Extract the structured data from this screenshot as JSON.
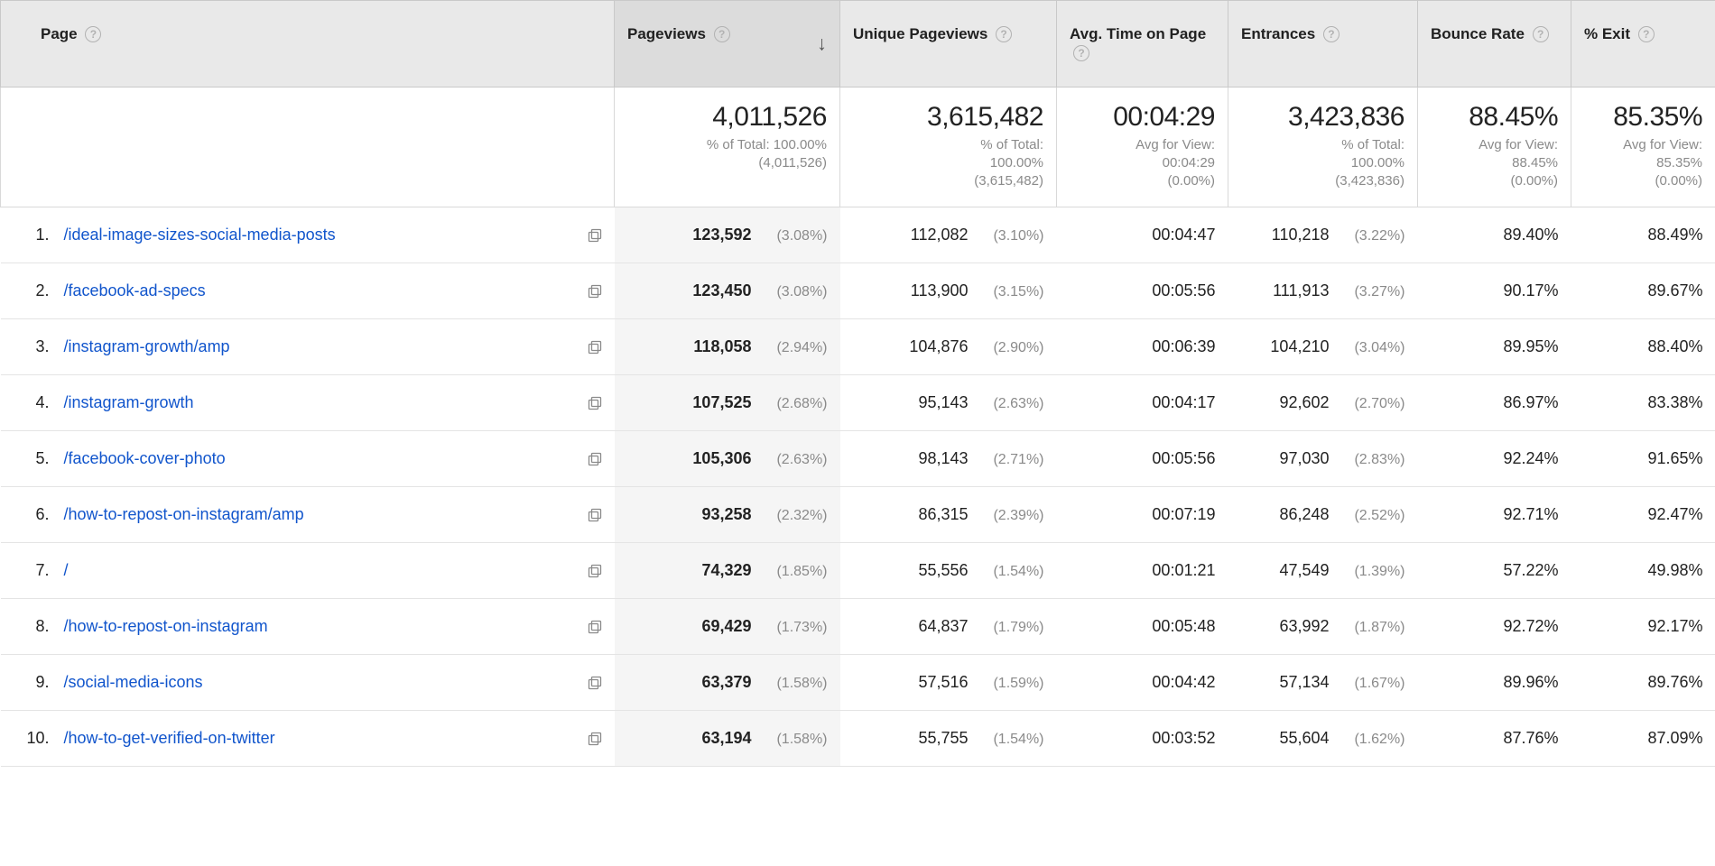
{
  "columns": {
    "page": "Page",
    "pageviews": "Pageviews",
    "unique_pageviews": "Unique Pageviews",
    "avg_time_on_page": "Avg. Time on Page",
    "entrances": "Entrances",
    "bounce_rate": "Bounce Rate",
    "pct_exit": "% Exit"
  },
  "sort": {
    "column": "pageviews",
    "direction": "desc"
  },
  "totals": {
    "pageviews": {
      "value": "4,011,526",
      "sub1": "% of Total: 100.00%",
      "sub2": "(4,011,526)"
    },
    "unique_pageviews": {
      "value": "3,615,482",
      "sub1": "% of Total:",
      "sub2": "100.00%",
      "sub3": "(3,615,482)"
    },
    "avg_time_on_page": {
      "value": "00:04:29",
      "sub1": "Avg for View:",
      "sub2": "00:04:29",
      "sub3": "(0.00%)"
    },
    "entrances": {
      "value": "3,423,836",
      "sub1": "% of Total:",
      "sub2": "100.00%",
      "sub3": "(3,423,836)"
    },
    "bounce_rate": {
      "value": "88.45%",
      "sub1": "Avg for View:",
      "sub2": "88.45%",
      "sub3": "(0.00%)"
    },
    "pct_exit": {
      "value": "85.35%",
      "sub1": "Avg for View:",
      "sub2": "85.35%",
      "sub3": "(0.00%)"
    }
  },
  "rows": [
    {
      "idx": "1.",
      "page": "/ideal-image-sizes-social-media-posts",
      "pv": "123,592",
      "pv_pct": "(3.08%)",
      "upv": "112,082",
      "upv_pct": "(3.10%)",
      "time": "00:04:47",
      "entr": "110,218",
      "entr_pct": "(3.22%)",
      "br": "89.40%",
      "exit": "88.49%"
    },
    {
      "idx": "2.",
      "page": "/facebook-ad-specs",
      "pv": "123,450",
      "pv_pct": "(3.08%)",
      "upv": "113,900",
      "upv_pct": "(3.15%)",
      "time": "00:05:56",
      "entr": "111,913",
      "entr_pct": "(3.27%)",
      "br": "90.17%",
      "exit": "89.67%"
    },
    {
      "idx": "3.",
      "page": "/instagram-growth/amp",
      "pv": "118,058",
      "pv_pct": "(2.94%)",
      "upv": "104,876",
      "upv_pct": "(2.90%)",
      "time": "00:06:39",
      "entr": "104,210",
      "entr_pct": "(3.04%)",
      "br": "89.95%",
      "exit": "88.40%"
    },
    {
      "idx": "4.",
      "page": "/instagram-growth",
      "pv": "107,525",
      "pv_pct": "(2.68%)",
      "upv": "95,143",
      "upv_pct": "(2.63%)",
      "time": "00:04:17",
      "entr": "92,602",
      "entr_pct": "(2.70%)",
      "br": "86.97%",
      "exit": "83.38%"
    },
    {
      "idx": "5.",
      "page": "/facebook-cover-photo",
      "pv": "105,306",
      "pv_pct": "(2.63%)",
      "upv": "98,143",
      "upv_pct": "(2.71%)",
      "time": "00:05:56",
      "entr": "97,030",
      "entr_pct": "(2.83%)",
      "br": "92.24%",
      "exit": "91.65%"
    },
    {
      "idx": "6.",
      "page": "/how-to-repost-on-instagram/amp",
      "pv": "93,258",
      "pv_pct": "(2.32%)",
      "upv": "86,315",
      "upv_pct": "(2.39%)",
      "time": "00:07:19",
      "entr": "86,248",
      "entr_pct": "(2.52%)",
      "br": "92.71%",
      "exit": "92.47%"
    },
    {
      "idx": "7.",
      "page": "/",
      "pv": "74,329",
      "pv_pct": "(1.85%)",
      "upv": "55,556",
      "upv_pct": "(1.54%)",
      "time": "00:01:21",
      "entr": "47,549",
      "entr_pct": "(1.39%)",
      "br": "57.22%",
      "exit": "49.98%"
    },
    {
      "idx": "8.",
      "page": "/how-to-repost-on-instagram",
      "pv": "69,429",
      "pv_pct": "(1.73%)",
      "upv": "64,837",
      "upv_pct": "(1.79%)",
      "time": "00:05:48",
      "entr": "63,992",
      "entr_pct": "(1.87%)",
      "br": "92.72%",
      "exit": "92.17%"
    },
    {
      "idx": "9.",
      "page": "/social-media-icons",
      "pv": "63,379",
      "pv_pct": "(1.58%)",
      "upv": "57,516",
      "upv_pct": "(1.59%)",
      "time": "00:04:42",
      "entr": "57,134",
      "entr_pct": "(1.67%)",
      "br": "89.96%",
      "exit": "89.76%"
    },
    {
      "idx": "10.",
      "page": "/how-to-get-verified-on-twitter",
      "pv": "63,194",
      "pv_pct": "(1.58%)",
      "upv": "55,755",
      "upv_pct": "(1.54%)",
      "time": "00:03:52",
      "entr": "55,604",
      "entr_pct": "(1.62%)",
      "br": "87.76%",
      "exit": "87.09%"
    }
  ],
  "styling": {
    "header_bg": "#e9e9e9",
    "sorted_header_bg": "#dcdcdc",
    "sorted_cell_bg": "#f5f5f5",
    "border_color": "#c9c9c9",
    "row_border_color": "#e4e4e4",
    "link_color": "#1155cc",
    "muted_text": "#8a8a8a",
    "total_fontsize_pt": 30,
    "body_fontsize_pt": 18
  }
}
